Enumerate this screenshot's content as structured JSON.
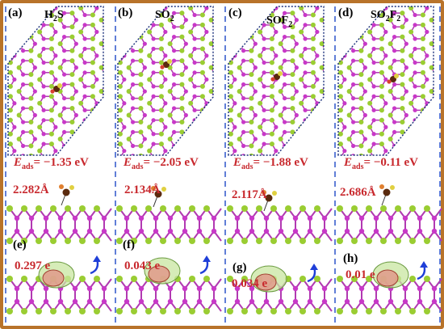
{
  "panels": [
    {
      "top_label": "(a)",
      "molecule": {
        "base": "H",
        "sub1": "2",
        "rest": "S",
        "sub2": ""
      },
      "eads_value": "= −1.35 eV",
      "distance": "2.282Å",
      "bottom_label": "(e)",
      "charge": "0.297 e"
    },
    {
      "top_label": "(b)",
      "molecule": {
        "base": "SO",
        "sub1": "2",
        "rest": "",
        "sub2": ""
      },
      "eads_value": "= −2.05 eV",
      "distance": "2.134Å",
      "bottom_label": "(f)",
      "charge": "0.043 e"
    },
    {
      "top_label": "(c)",
      "molecule": {
        "base": "SOF",
        "sub1": "2",
        "rest": "",
        "sub2": ""
      },
      "eads_value": "= −1.88 eV",
      "distance": "2.117Å",
      "bottom_label": "(g)",
      "charge": "0.034 e"
    },
    {
      "top_label": "(d)",
      "molecule": {
        "base": "SO",
        "sub1": "2",
        "rest": "F",
        "sub2": "2"
      },
      "eads_value": "= −0.11 eV",
      "distance": "2.686Å",
      "bottom_label": "(h)",
      "charge": "0.01 e"
    }
  ],
  "eads_symbol": "E",
  "eads_subscript": "ads",
  "colors": {
    "frame": "#b8732a",
    "dashed_separator": "#3a5fcd",
    "label_red": "#c8282d",
    "atom_green": "#9acd32",
    "atom_magenta": "#c838c8",
    "bond": "#b03ab0",
    "arrow": "#1f3fd8",
    "charge_gain": "#c8e6a0",
    "charge_loss": "#e09a8a"
  }
}
